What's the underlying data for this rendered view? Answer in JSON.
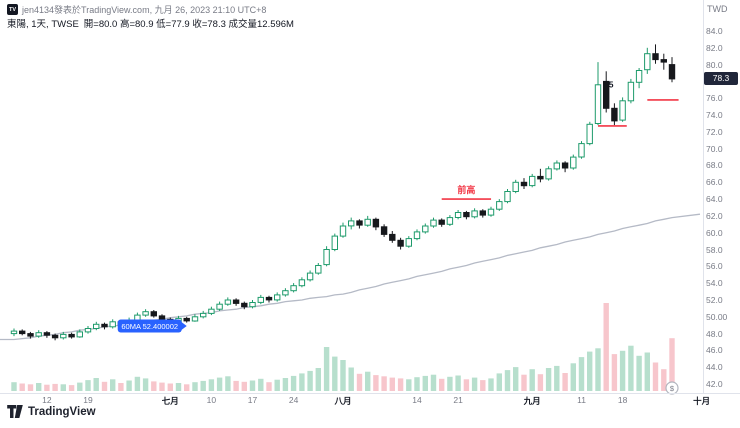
{
  "meta": {
    "attribution": "jen4134發表於TradingView.com, 九月 26, 2023 21:10 UTC+8",
    "currency": "TWD"
  },
  "header": {
    "symbol_line": "東陽, 1天, TWSE",
    "stats": "開=80.0 高=80.9 低=77.9 收=78.3 成交量12.596M"
  },
  "footer": {
    "logo_text": "TradingView"
  },
  "price_axis": {
    "last_price_badge": "78.3",
    "labels": [
      {
        "v": 84,
        "t": "84.0"
      },
      {
        "v": 82,
        "t": "82.0"
      },
      {
        "v": 80,
        "t": "80.0"
      },
      {
        "v": 78,
        "t": "78.0"
      },
      {
        "v": 76,
        "t": "76.0"
      },
      {
        "v": 74,
        "t": "74.0"
      },
      {
        "v": 72,
        "t": "72.0"
      },
      {
        "v": 70,
        "t": "70.0"
      },
      {
        "v": 68,
        "t": "68.0"
      },
      {
        "v": 66,
        "t": "66.0"
      },
      {
        "v": 64,
        "t": "64.0"
      },
      {
        "v": 62,
        "t": "62.0"
      },
      {
        "v": 60,
        "t": "60.0"
      },
      {
        "v": 58,
        "t": "58.0"
      },
      {
        "v": 56,
        "t": "56.0"
      },
      {
        "v": 54,
        "t": "54.0"
      },
      {
        "v": 52,
        "t": "52.0"
      },
      {
        "v": 50,
        "t": "50.00"
      },
      {
        "v": 48,
        "t": "48.0"
      },
      {
        "v": 46,
        "t": "46.0"
      },
      {
        "v": 44,
        "t": "44.0"
      },
      {
        "v": 42,
        "t": "42.0"
      }
    ]
  },
  "time_axis": {
    "labels": [
      {
        "date": "2023-06-12",
        "text": "12",
        "month": false
      },
      {
        "date": "2023-06-19",
        "text": "19",
        "month": false
      },
      {
        "date": "2023-07-03",
        "text": "七月",
        "month": true
      },
      {
        "date": "2023-07-10",
        "text": "10",
        "month": false
      },
      {
        "date": "2023-07-17",
        "text": "17",
        "month": false
      },
      {
        "date": "2023-07-24",
        "text": "24",
        "month": false
      },
      {
        "date": "2023-08-01",
        "text": "八月",
        "month": true
      },
      {
        "date": "2023-08-14",
        "text": "14",
        "month": false
      },
      {
        "date": "2023-08-21",
        "text": "21",
        "month": false
      },
      {
        "date": "2023-09-01",
        "text": "九月",
        "month": true
      },
      {
        "date": "2023-09-11",
        "text": "11",
        "month": false
      },
      {
        "date": "2023-09-18",
        "text": "18",
        "month": false
      },
      {
        "date": "2023-10-02",
        "text": "十月",
        "month": true
      }
    ]
  },
  "annotations": {
    "ma_label": {
      "text": "60MA 52.400002",
      "index": 21,
      "price": 48.9,
      "bg": "#2962ff"
    },
    "prev_high": {
      "text": "前高",
      "price": 64.0,
      "from_index": 52,
      "to_index": 58,
      "color": "#f23645"
    },
    "support_1": {
      "price": 72.7,
      "from_index": 71,
      "to_index": 74.5,
      "color": "#f23645"
    },
    "support_2": {
      "price": 75.8,
      "from_index": 77,
      "to_index": 80.8,
      "color": "#f23645"
    },
    "wave_label": {
      "text": "5",
      "index": 72.6,
      "price": 77.3
    },
    "dividend_marker": {
      "text": "$",
      "index": 80
    }
  },
  "chart_data": {
    "type": "candlestick",
    "symbol": "東陽",
    "interval": "1天",
    "exchange": "TWSE",
    "last_ohlc": {
      "open": 80.0,
      "high": 80.9,
      "low": 77.9,
      "close": 78.3,
      "volume": "12.596M"
    },
    "ylim": [
      42,
      84
    ],
    "colors": {
      "up_border": "#1e9b6b",
      "up_fill": "#ffffff",
      "down": "#17181c",
      "vol_up": "#b7dfcd",
      "vol_down": "#f7c6cc",
      "ma": "#b5bac6",
      "annotation_red": "#f23645",
      "accent_blue": "#2962ff"
    },
    "dates": [
      "2023-06-06",
      "2023-06-07",
      "2023-06-08",
      "2023-06-09",
      "2023-06-12",
      "2023-06-13",
      "2023-06-14",
      "2023-06-15",
      "2023-06-16",
      "2023-06-19",
      "2023-06-20",
      "2023-06-21",
      "2023-06-22",
      "2023-06-23",
      "2023-06-26",
      "2023-06-27",
      "2023-06-28",
      "2023-06-29",
      "2023-06-30",
      "2023-07-03",
      "2023-07-04",
      "2023-07-05",
      "2023-07-06",
      "2023-07-07",
      "2023-07-10",
      "2023-07-11",
      "2023-07-12",
      "2023-07-13",
      "2023-07-14",
      "2023-07-17",
      "2023-07-18",
      "2023-07-19",
      "2023-07-20",
      "2023-07-21",
      "2023-07-24",
      "2023-07-25",
      "2023-07-26",
      "2023-07-27",
      "2023-07-28",
      "2023-07-31",
      "2023-08-01",
      "2023-08-02",
      "2023-08-03",
      "2023-08-04",
      "2023-08-07",
      "2023-08-08",
      "2023-08-09",
      "2023-08-10",
      "2023-08-11",
      "2023-08-14",
      "2023-08-15",
      "2023-08-16",
      "2023-08-17",
      "2023-08-18",
      "2023-08-21",
      "2023-08-22",
      "2023-08-23",
      "2023-08-24",
      "2023-08-25",
      "2023-08-28",
      "2023-08-29",
      "2023-08-30",
      "2023-08-31",
      "2023-09-01",
      "2023-09-04",
      "2023-09-05",
      "2023-09-06",
      "2023-09-07",
      "2023-09-08",
      "2023-09-11",
      "2023-09-12",
      "2023-09-13",
      "2023-09-14",
      "2023-09-15",
      "2023-09-18",
      "2023-09-19",
      "2023-09-20",
      "2023-09-21",
      "2023-09-22",
      "2023-09-25",
      "2023-09-26"
    ],
    "open": [
      48.0,
      48.3,
      48.0,
      47.7,
      48.1,
      47.8,
      47.5,
      47.9,
      47.6,
      48.2,
      48.6,
      49.1,
      48.8,
      49.4,
      49.0,
      49.6,
      50.2,
      50.6,
      50.1,
      49.7,
      49.4,
      49.8,
      49.5,
      50.0,
      50.4,
      50.9,
      51.5,
      52.0,
      51.6,
      51.2,
      51.7,
      52.3,
      52.0,
      52.6,
      53.1,
      53.7,
      54.4,
      55.2,
      56.2,
      58.0,
      59.6,
      60.8,
      61.4,
      60.9,
      61.6,
      60.7,
      59.8,
      59.1,
      58.4,
      59.3,
      60.1,
      60.8,
      61.5,
      61.0,
      61.8,
      62.4,
      61.9,
      62.6,
      62.1,
      62.8,
      63.7,
      64.9,
      66.0,
      65.6,
      66.7,
      66.4,
      67.6,
      68.3,
      67.7,
      69.0,
      70.6,
      73.0,
      78.0,
      74.8,
      73.4,
      75.7,
      77.9,
      79.4,
      81.3,
      80.6,
      80.0
    ],
    "high": [
      48.6,
      48.5,
      48.2,
      48.4,
      48.3,
      48.0,
      48.2,
      48.1,
      48.5,
      48.9,
      49.4,
      49.3,
      49.7,
      49.6,
      49.9,
      50.5,
      50.9,
      50.8,
      50.3,
      49.9,
      50.1,
      50.0,
      50.3,
      50.7,
      51.2,
      51.8,
      52.3,
      52.2,
      51.8,
      52.0,
      52.6,
      52.5,
      52.9,
      53.4,
      54.0,
      54.7,
      55.5,
      56.4,
      58.4,
      59.9,
      61.2,
      61.8,
      61.6,
      62.0,
      61.8,
      61.0,
      60.2,
      59.4,
      59.6,
      60.4,
      61.1,
      61.8,
      61.7,
      62.1,
      62.7,
      62.6,
      62.9,
      62.8,
      63.1,
      64.0,
      65.2,
      66.3,
      66.5,
      67.0,
      67.6,
      67.9,
      68.6,
      68.5,
      69.3,
      70.9,
      73.2,
      80.3,
      79.2,
      75.4,
      76.1,
      78.3,
      79.6,
      82.0,
      82.4,
      81.3,
      80.9
    ],
    "low": [
      47.7,
      47.8,
      47.4,
      47.5,
      47.5,
      47.2,
      47.3,
      47.4,
      47.5,
      48.0,
      48.4,
      48.5,
      48.6,
      48.8,
      48.9,
      49.4,
      50.0,
      49.9,
      49.5,
      49.1,
      49.2,
      49.3,
      49.4,
      49.8,
      50.2,
      50.7,
      51.3,
      51.3,
      50.9,
      51.0,
      51.5,
      51.7,
      51.8,
      52.4,
      52.9,
      53.5,
      54.2,
      55.0,
      56.0,
      57.8,
      59.4,
      60.4,
      60.5,
      60.7,
      60.3,
      59.5,
      58.8,
      58.0,
      58.2,
      59.1,
      59.9,
      60.6,
      60.7,
      60.8,
      61.6,
      61.6,
      61.7,
      61.8,
      61.9,
      62.6,
      63.5,
      64.7,
      65.2,
      65.4,
      66.0,
      66.2,
      67.4,
      67.2,
      67.5,
      68.8,
      70.4,
      72.8,
      74.3,
      72.8,
      73.2,
      75.4,
      77.2,
      78.9,
      80.1,
      79.4,
      77.9
    ],
    "close": [
      48.3,
      48.0,
      47.7,
      48.1,
      47.8,
      47.5,
      47.9,
      47.6,
      48.2,
      48.6,
      49.1,
      48.8,
      49.4,
      49.0,
      49.6,
      50.2,
      50.6,
      50.1,
      49.7,
      49.4,
      49.8,
      49.5,
      50.0,
      50.4,
      50.9,
      51.5,
      52.0,
      51.6,
      51.2,
      51.7,
      52.3,
      52.0,
      52.6,
      53.1,
      53.7,
      54.4,
      55.2,
      56.1,
      58.0,
      59.6,
      60.8,
      61.4,
      60.9,
      61.6,
      60.7,
      59.8,
      59.1,
      58.4,
      59.3,
      60.1,
      60.8,
      61.5,
      61.0,
      61.8,
      62.4,
      61.9,
      62.6,
      62.1,
      62.8,
      63.7,
      64.9,
      66.0,
      65.6,
      66.7,
      66.4,
      67.6,
      68.3,
      67.7,
      69.0,
      70.6,
      72.9,
      77.6,
      74.8,
      73.3,
      75.7,
      77.9,
      79.3,
      81.3,
      80.6,
      80.3,
      78.3
    ],
    "volume_m": [
      2.1,
      1.8,
      1.6,
      1.9,
      1.5,
      1.7,
      1.6,
      1.4,
      2.0,
      2.6,
      3.1,
      2.2,
      2.8,
      1.9,
      2.5,
      3.4,
      3.0,
      2.3,
      2.0,
      1.8,
      1.9,
      1.6,
      2.1,
      2.4,
      2.8,
      3.2,
      3.5,
      2.4,
      2.2,
      2.5,
      2.9,
      2.1,
      2.7,
      3.1,
      3.6,
      4.2,
      4.8,
      5.5,
      10.5,
      8.2,
      7.4,
      5.6,
      4.1,
      4.6,
      3.8,
      3.5,
      3.2,
      3.0,
      2.8,
      3.3,
      3.6,
      3.9,
      2.9,
      3.4,
      3.7,
      2.8,
      3.2,
      2.6,
      3.0,
      4.2,
      5.0,
      5.7,
      3.9,
      5.2,
      4.0,
      5.5,
      6.0,
      4.3,
      6.6,
      8.1,
      9.4,
      10.2,
      21.0,
      8.8,
      9.6,
      10.8,
      8.4,
      9.2,
      6.8,
      5.2,
      12.596
    ],
    "ma60": [
      47.3,
      47.4,
      47.5,
      47.7,
      47.8,
      47.9,
      48.1,
      48.2,
      48.4,
      48.5,
      48.6,
      48.8,
      48.9,
      49.0,
      49.2,
      49.3,
      49.5,
      49.6,
      49.7,
      49.9,
      50.0,
      50.1,
      50.3,
      50.4,
      50.5,
      50.7,
      50.8,
      50.9,
      51.1,
      51.2,
      51.3,
      51.5,
      51.6,
      51.8,
      51.9,
      52.0,
      52.2,
      52.3,
      52.4,
      52.6,
      52.7,
      52.9,
      53.2,
      53.4,
      53.6,
      53.9,
      54.1,
      54.3,
      54.5,
      54.8,
      55.0,
      55.2,
      55.4,
      55.7,
      55.9,
      56.1,
      56.4,
      56.6,
      56.8,
      57.0,
      57.3,
      57.5,
      57.7,
      57.9,
      58.2,
      58.4,
      58.6,
      58.9,
      59.1,
      59.3,
      59.5,
      59.8,
      60.0,
      60.2,
      60.5,
      60.7,
      60.9,
      61.1,
      61.4,
      61.6,
      61.8
    ]
  }
}
